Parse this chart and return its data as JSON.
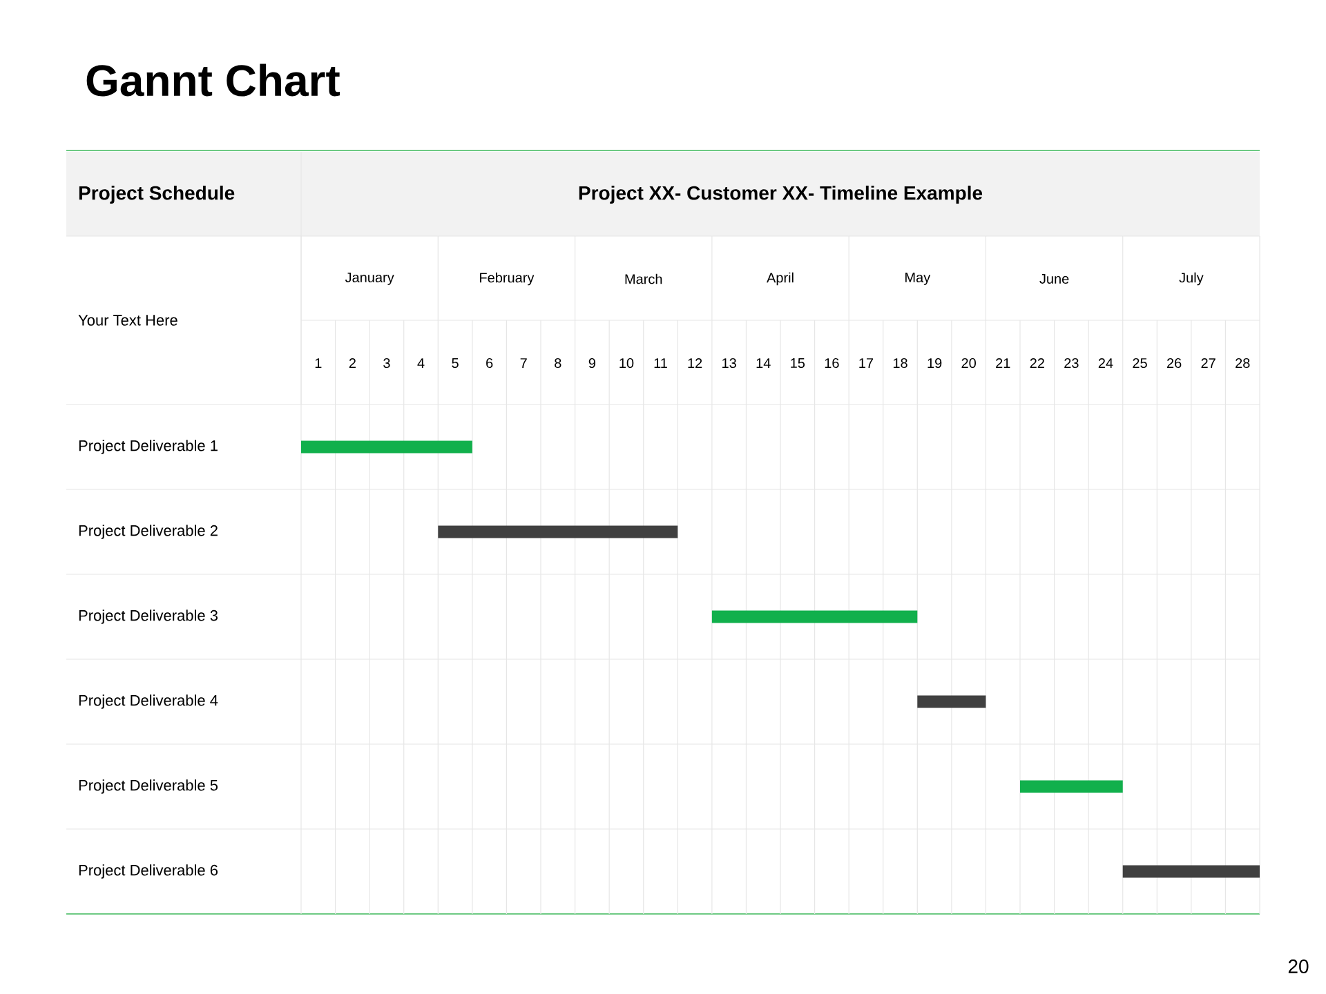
{
  "chart_data": {
    "type": "bar",
    "orientation": "horizontal",
    "title": "Gannt Chart",
    "annotations": [
      "Project Schedule",
      "Project XX- Customer XX- Timeline Example",
      "Your Text Here",
      "20",
      "January",
      "February",
      "March",
      "April",
      "May",
      "June",
      "July"
    ],
    "categories": [
      "Project Deliverable 1",
      "Project Deliverable 2",
      "Project Deliverable 3",
      "Project Deliverable 4",
      "Project Deliverable 5",
      "Project Deliverable 6"
    ],
    "base": [
      0,
      4,
      12,
      18,
      21,
      24
    ],
    "values": [
      5,
      7,
      6,
      2,
      3,
      4
    ],
    "colors": [
      "#11b04c",
      "#404040",
      "#11b04c",
      "#404040",
      "#11b04c",
      "#404040"
    ],
    "xlim": [
      0,
      28
    ],
    "xticks": [
      {
        "value": 0.5,
        "label": "1"
      },
      {
        "value": 1.5,
        "label": "2"
      },
      {
        "value": 2.5,
        "label": "3"
      },
      {
        "value": 3.5,
        "label": "4"
      },
      {
        "value": 4.5,
        "label": "5"
      },
      {
        "value": 5.5,
        "label": "6"
      },
      {
        "value": 6.5,
        "label": "7"
      },
      {
        "value": 7.5,
        "label": "8"
      },
      {
        "value": 8.5,
        "label": "9"
      },
      {
        "value": 9.5,
        "label": "10"
      },
      {
        "value": 10.5,
        "label": "11"
      },
      {
        "value": 11.5,
        "label": "12"
      },
      {
        "value": 12.5,
        "label": "13"
      },
      {
        "value": 13.5,
        "label": "14"
      },
      {
        "value": 14.5,
        "label": "15"
      },
      {
        "value": 15.5,
        "label": "16"
      },
      {
        "value": 16.5,
        "label": "17"
      },
      {
        "value": 17.5,
        "label": "18"
      },
      {
        "value": 18.5,
        "label": "19"
      },
      {
        "value": 19.5,
        "label": "20"
      },
      {
        "value": 20.5,
        "label": "21"
      },
      {
        "value": 21.5,
        "label": "22"
      },
      {
        "value": 22.5,
        "label": "23"
      },
      {
        "value": 23.5,
        "label": "24"
      },
      {
        "value": 24.5,
        "label": "25"
      },
      {
        "value": 25.5,
        "label": "26"
      },
      {
        "value": 26.5,
        "label": "27"
      },
      {
        "value": 27.5,
        "label": "28"
      }
    ],
    "grid": true
  }
}
